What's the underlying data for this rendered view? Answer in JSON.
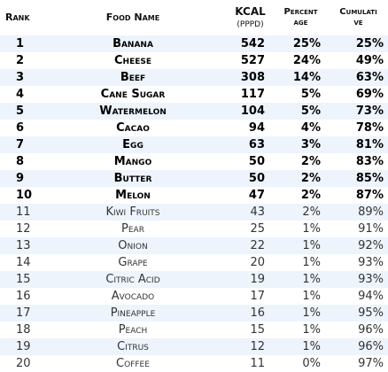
{
  "header": {
    "rank": "Rank",
    "food_name": "Food Name",
    "kcal": "KCAL",
    "kcal_unit": "(PPPD)",
    "percent_line1": "Percent",
    "percent_line2": "age",
    "cumulative_line1": "Cumulati",
    "cumulative_line2": "ve"
  },
  "colors": {
    "stripe": "#eef4fb",
    "background": "#ffffff"
  },
  "rows": [
    {
      "rank": "1",
      "food": "Banana",
      "kcal": "542",
      "percent": "25%",
      "cumulative": "25%"
    },
    {
      "rank": "2",
      "food": "Cheese",
      "kcal": "527",
      "percent": "24%",
      "cumulative": "49%"
    },
    {
      "rank": "3",
      "food": "Beef",
      "kcal": "308",
      "percent": "14%",
      "cumulative": "63%"
    },
    {
      "rank": "4",
      "food": "Cane Sugar",
      "kcal": "117",
      "percent": "5%",
      "cumulative": "69%"
    },
    {
      "rank": "5",
      "food": "Watermelon",
      "kcal": "104",
      "percent": "5%",
      "cumulative": "73%"
    },
    {
      "rank": "6",
      "food": "Cacao",
      "kcal": "94",
      "percent": "4%",
      "cumulative": "78%"
    },
    {
      "rank": "7",
      "food": "Egg",
      "kcal": "63",
      "percent": "3%",
      "cumulative": "81%"
    },
    {
      "rank": "8",
      "food": "Mango",
      "kcal": "50",
      "percent": "2%",
      "cumulative": "83%"
    },
    {
      "rank": "9",
      "food": "Butter",
      "kcal": "50",
      "percent": "2%",
      "cumulative": "85%"
    },
    {
      "rank": "10",
      "food": "Melon",
      "kcal": "47",
      "percent": "2%",
      "cumulative": "87%"
    },
    {
      "rank": "11",
      "food": "Kiwi Fruits",
      "kcal": "43",
      "percent": "2%",
      "cumulative": "89%"
    },
    {
      "rank": "12",
      "food": "Pear",
      "kcal": "25",
      "percent": "1%",
      "cumulative": "91%"
    },
    {
      "rank": "13",
      "food": "Onion",
      "kcal": "22",
      "percent": "1%",
      "cumulative": "92%"
    },
    {
      "rank": "14",
      "food": "Grape",
      "kcal": "20",
      "percent": "1%",
      "cumulative": "93%"
    },
    {
      "rank": "15",
      "food": "Citric Acid",
      "kcal": "19",
      "percent": "1%",
      "cumulative": "93%"
    },
    {
      "rank": "16",
      "food": "Avocado",
      "kcal": "17",
      "percent": "1%",
      "cumulative": "94%"
    },
    {
      "rank": "17",
      "food": "Pineapple",
      "kcal": "16",
      "percent": "1%",
      "cumulative": "95%"
    },
    {
      "rank": "18",
      "food": "Peach",
      "kcal": "15",
      "percent": "1%",
      "cumulative": "96%"
    },
    {
      "rank": "19",
      "food": "Citrus",
      "kcal": "12",
      "percent": "1%",
      "cumulative": "96%"
    },
    {
      "rank": "20",
      "food": "Coffee",
      "kcal": "11",
      "percent": "0%",
      "cumulative": "97%"
    }
  ]
}
